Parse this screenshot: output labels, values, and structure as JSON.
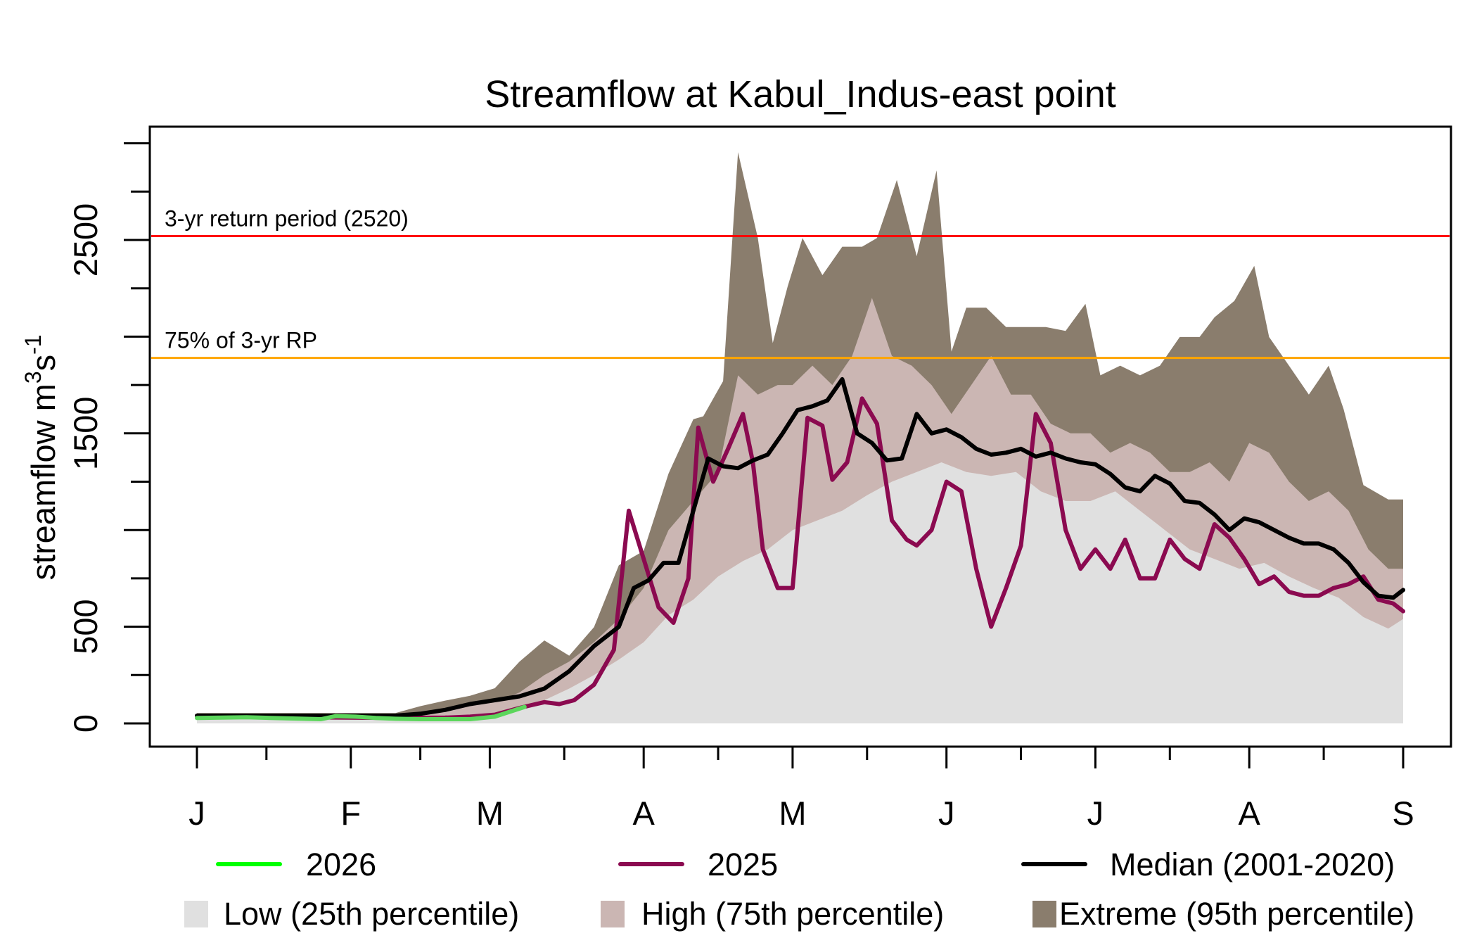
{
  "chart_data": {
    "type": "area",
    "title": "Streamflow at Kabul_Indus-east point",
    "xlabel": "",
    "ylabel": "streamflow m3s-1",
    "ylabel_parts": {
      "base": "streamflow m",
      "sup1": "3",
      "mid": "s",
      "sup2": "-1"
    },
    "x_unit": "days since Jan 1",
    "xlim": [
      0,
      243
    ],
    "ylim": [
      0,
      3000
    ],
    "y_ticks": [
      0,
      500,
      1000,
      1500,
      2000,
      2500,
      3000
    ],
    "y_tick_labels": [
      "0",
      "500",
      "1500",
      "2500"
    ],
    "y_labeled_ticks": [
      0,
      500,
      1500,
      2500
    ],
    "y_minor_ticks": [
      250,
      750,
      1000,
      1250,
      1750,
      2000,
      2250,
      2750,
      3000
    ],
    "x_ticks": [
      {
        "day": 0,
        "label": "J"
      },
      {
        "day": 31,
        "label": "F"
      },
      {
        "day": 59,
        "label": "M"
      },
      {
        "day": 90,
        "label": "A"
      },
      {
        "day": 120,
        "label": "M"
      },
      {
        "day": 151,
        "label": "J"
      },
      {
        "day": 181,
        "label": "J"
      },
      {
        "day": 212,
        "label": "A"
      },
      {
        "day": 243,
        "label": "S"
      }
    ],
    "x_minor_ticks": [
      14,
      45,
      74,
      105,
      135,
      166,
      196,
      227
    ],
    "grid": false,
    "reference_lines": [
      {
        "name": "3-yr return period",
        "label": "3-yr return period (2520)",
        "value": 2520,
        "color": "#FF0000"
      },
      {
        "name": "75% of 3-yr RP",
        "label": "75% of 3-yr RP",
        "value": 1890,
        "color": "#FFA500"
      }
    ],
    "bands": [
      {
        "name": "Extreme (95th percentile)",
        "color": "#8A7D6D",
        "x": [
          0,
          10,
          20,
          30,
          40,
          45,
          50,
          55,
          60,
          65,
          70,
          75,
          80,
          85,
          90,
          95,
          100,
          102,
          106,
          109,
          113,
          116,
          119,
          122,
          126,
          130,
          134,
          137,
          141,
          145,
          149,
          152,
          155,
          159,
          163,
          167,
          171,
          175,
          179,
          182,
          186,
          190,
          194,
          198,
          202,
          205,
          209,
          213,
          216,
          220,
          224,
          228,
          231,
          235,
          240,
          243
        ],
        "values": [
          54,
          54,
          54,
          54,
          54,
          89,
          118,
          143,
          182,
          320,
          429,
          350,
          498,
          818,
          892,
          1292,
          1573,
          1588,
          1770,
          2954,
          2510,
          1967,
          2260,
          2510,
          2318,
          2465,
          2465,
          2510,
          2810,
          2416,
          2860,
          1923,
          2150,
          2150,
          2050,
          2050,
          2050,
          2030,
          2170,
          1800,
          1850,
          1800,
          1850,
          1998,
          1998,
          2100,
          2185,
          2366,
          1998,
          1850,
          1700,
          1850,
          1626,
          1232,
          1158,
          1158
        ]
      },
      {
        "name": "High (75th percentile)",
        "color": "#CBB6B3",
        "x": [
          0,
          10,
          20,
          30,
          40,
          45,
          50,
          55,
          60,
          65,
          70,
          75,
          80,
          85,
          90,
          95,
          100,
          105,
          109,
          113,
          117,
          120,
          124,
          128,
          132,
          136,
          140,
          144,
          148,
          152,
          156,
          160,
          164,
          168,
          172,
          176,
          180,
          184,
          188,
          192,
          196,
          200,
          204,
          208,
          212,
          216,
          220,
          224,
          228,
          232,
          236,
          240,
          243
        ],
        "values": [
          50,
          50,
          50,
          50,
          50,
          60,
          70,
          90,
          110,
          160,
          250,
          320,
          420,
          540,
          700,
          1000,
          1150,
          1300,
          1800,
          1700,
          1750,
          1750,
          1850,
          1750,
          1900,
          2200,
          1900,
          1850,
          1750,
          1600,
          1750,
          1900,
          1700,
          1700,
          1550,
          1500,
          1500,
          1400,
          1450,
          1400,
          1300,
          1300,
          1350,
          1250,
          1450,
          1400,
          1250,
          1150,
          1200,
          1100,
          900,
          800,
          800
        ]
      },
      {
        "name": "Low (25th percentile)",
        "color": "#E0E0E0",
        "x": [
          0,
          10,
          20,
          30,
          40,
          50,
          55,
          60,
          65,
          70,
          75,
          80,
          85,
          90,
          95,
          100,
          105,
          110,
          115,
          120,
          125,
          130,
          135,
          140,
          145,
          150,
          155,
          160,
          165,
          170,
          175,
          180,
          185,
          190,
          195,
          200,
          205,
          210,
          215,
          220,
          225,
          230,
          235,
          240,
          243
        ],
        "values": [
          25,
          25,
          25,
          25,
          25,
          30,
          40,
          50,
          70,
          120,
          180,
          250,
          330,
          420,
          560,
          640,
          760,
          840,
          900,
          1000,
          1050,
          1100,
          1180,
          1250,
          1300,
          1350,
          1300,
          1280,
          1300,
          1200,
          1150,
          1150,
          1200,
          1100,
          1000,
          900,
          850,
          800,
          830,
          760,
          700,
          650,
          550,
          490,
          540
        ]
      }
    ],
    "series": [
      {
        "name": "2026",
        "color": "#00FF00",
        "plot_color": "#5CD65C",
        "x": [
          0,
          5,
          10,
          15,
          20,
          25,
          28,
          32,
          36,
          40,
          45,
          50,
          55,
          60,
          63,
          66
        ],
        "values": [
          28,
          30,
          32,
          28,
          25,
          22,
          38,
          35,
          28,
          24,
          22,
          22,
          22,
          35,
          60,
          85
        ]
      },
      {
        "name": "2025",
        "color": "#8B0A50",
        "x": [
          0,
          10,
          20,
          30,
          40,
          50,
          55,
          60,
          65,
          70,
          73,
          76,
          80,
          84,
          87,
          90,
          93,
          96,
          99,
          101,
          104,
          107,
          110,
          112,
          114,
          117,
          120,
          123,
          126,
          128,
          131,
          134,
          137,
          140,
          143,
          145,
          148,
          151,
          154,
          157,
          160,
          163,
          166,
          169,
          172,
          175,
          178,
          181,
          184,
          187,
          190,
          193,
          196,
          199,
          202,
          205,
          208,
          211,
          214,
          217,
          220,
          223,
          226,
          229,
          232,
          235,
          238,
          241,
          243
        ],
        "values": [
          40,
          35,
          32,
          30,
          28,
          30,
          35,
          45,
          80,
          110,
          100,
          120,
          200,
          380,
          1100,
          850,
          600,
          520,
          750,
          1530,
          1250,
          1420,
          1600,
          1350,
          900,
          700,
          700,
          1580,
          1540,
          1260,
          1350,
          1680,
          1550,
          1050,
          950,
          920,
          1000,
          1250,
          1200,
          800,
          500,
          700,
          920,
          1600,
          1450,
          1000,
          800,
          900,
          800,
          950,
          750,
          750,
          950,
          850,
          800,
          1030,
          960,
          850,
          720,
          760,
          680,
          660,
          660,
          700,
          720,
          760,
          640,
          620,
          580
        ]
      },
      {
        "name": "Median (2001-2020)",
        "color": "#000000",
        "x": [
          0,
          10,
          20,
          30,
          40,
          45,
          50,
          55,
          60,
          65,
          70,
          75,
          80,
          85,
          88,
          91,
          94,
          97,
          100,
          103,
          106,
          109,
          112,
          115,
          118,
          121,
          124,
          127,
          130,
          133,
          136,
          139,
          142,
          145,
          148,
          151,
          154,
          157,
          160,
          163,
          166,
          169,
          172,
          175,
          178,
          181,
          184,
          187,
          190,
          193,
          196,
          199,
          202,
          205,
          208,
          211,
          214,
          217,
          220,
          223,
          226,
          229,
          232,
          235,
          238,
          241,
          243
        ],
        "values": [
          40,
          40,
          40,
          40,
          40,
          50,
          70,
          100,
          120,
          140,
          180,
          270,
          400,
          500,
          700,
          740,
          830,
          830,
          1100,
          1370,
          1330,
          1320,
          1360,
          1390,
          1500,
          1620,
          1640,
          1670,
          1780,
          1500,
          1450,
          1360,
          1370,
          1600,
          1500,
          1520,
          1480,
          1420,
          1390,
          1400,
          1420,
          1380,
          1400,
          1370,
          1350,
          1340,
          1290,
          1220,
          1200,
          1280,
          1240,
          1150,
          1140,
          1080,
          1000,
          1060,
          1040,
          1000,
          960,
          930,
          930,
          900,
          830,
          730,
          660,
          650,
          690
        ]
      }
    ],
    "legend": {
      "placement": "bottom",
      "items": [
        {
          "label": "2026",
          "kind": "line",
          "color": "#00FF00"
        },
        {
          "label": "2025",
          "kind": "line",
          "color": "#8B0A50"
        },
        {
          "label": "Median (2001-2020)",
          "kind": "line",
          "color": "#000000"
        },
        {
          "label": "Low (25th percentile)",
          "kind": "box",
          "color": "#E0E0E0"
        },
        {
          "label": "High (75th percentile)",
          "kind": "box",
          "color": "#CBB6B3"
        },
        {
          "label": "Extreme (95th percentile)",
          "kind": "box",
          "color": "#8A7D6D"
        }
      ]
    }
  }
}
